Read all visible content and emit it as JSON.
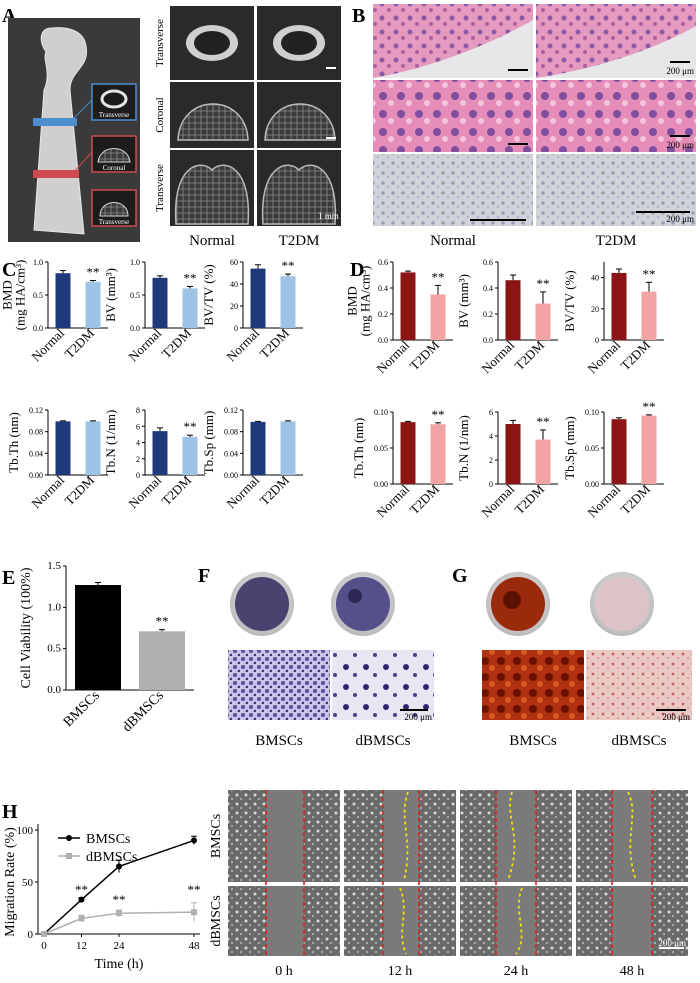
{
  "panels": {
    "A": {
      "label": "A",
      "femur_inset_labels": [
        "Transverse",
        "Coronal",
        "Transverse"
      ],
      "row_labels": [
        "Transverse",
        "Coronal",
        "Transverse"
      ],
      "group_labels": [
        "Normal",
        "T2DM"
      ],
      "scale_text": "1 mm"
    },
    "B": {
      "label": "B",
      "scale_texts": [
        "200 μm",
        "200 μm",
        "200 μm"
      ],
      "group_labels": [
        "Normal",
        "T2DM"
      ]
    },
    "F": {
      "label": "F",
      "scale_text": "200 μm",
      "group_labels": [
        "BMSCs",
        "dBMSCs"
      ]
    },
    "G": {
      "label": "G",
      "scale_text": "200 μm",
      "group_labels": [
        "BMSCs",
        "dBMSCs"
      ]
    },
    "H_micro": {
      "row_labels": [
        "BMSCs",
        "dBMSCs"
      ],
      "time_labels": [
        "0 h",
        "12 h",
        "24 h",
        "48 h"
      ],
      "scale_text": "200 μm"
    }
  },
  "colors": {
    "c_dark": "#1f3a7a",
    "c_light": "#9dc3e6",
    "d_dark": "#8b1515",
    "d_light": "#f2a3a3",
    "e_dark": "#000000",
    "e_light": "#b0b0b0",
    "he_pink": "#d8709a",
    "he_purple": "#7a4f9a"
  },
  "chart_data": [
    {
      "panel": "C",
      "label": "C",
      "type": "bar",
      "categories": [
        "Normal",
        "T2DM"
      ],
      "values": [
        0.83,
        0.7
      ],
      "errors": [
        0.04,
        0.02
      ],
      "ylabel": "BMD\n(mg HA/cm³)",
      "ylim": [
        0,
        1.0
      ],
      "yticks": [
        "0.0",
        "0.5",
        "1.0"
      ],
      "annotation": "**"
    },
    {
      "panel": "C",
      "type": "bar",
      "categories": [
        "Normal",
        "T2DM"
      ],
      "values": [
        0.76,
        0.6
      ],
      "errors": [
        0.03,
        0.03
      ],
      "ylabel": "BV (mm³)",
      "ylim": [
        0,
        1.0
      ],
      "yticks": [
        "0.0",
        "0.5",
        "1.0"
      ],
      "annotation": "**"
    },
    {
      "panel": "C",
      "type": "bar",
      "categories": [
        "Normal",
        "T2DM"
      ],
      "values": [
        54,
        47
      ],
      "errors": [
        3.5,
        2.0
      ],
      "ylabel": "BV/TV (%)",
      "ylim": [
        0,
        60
      ],
      "yticks": [
        "0",
        "20",
        "40",
        "60"
      ],
      "annotation": "**"
    },
    {
      "panel": "C",
      "type": "bar",
      "categories": [
        "Normal",
        "T2DM"
      ],
      "values": [
        0.099,
        0.099
      ],
      "errors": [
        0.001,
        0.001
      ],
      "ylabel": "Tb.Th (nm)",
      "ylim": [
        0,
        0.12
      ],
      "yticks": [
        "0.00",
        "0.04",
        "0.08",
        "0.12"
      ],
      "annotation": ""
    },
    {
      "panel": "C",
      "type": "bar",
      "categories": [
        "Normal",
        "T2DM"
      ],
      "values": [
        5.4,
        4.7
      ],
      "errors": [
        0.4,
        0.2
      ],
      "ylabel": "Tb.N (1/nm)",
      "ylim": [
        0,
        8
      ],
      "yticks": [
        "0",
        "2",
        "4",
        "6",
        "8"
      ],
      "annotation": "**"
    },
    {
      "panel": "C",
      "type": "bar",
      "categories": [
        "Normal",
        "T2DM"
      ],
      "values": [
        0.098,
        0.099
      ],
      "errors": [
        0.001,
        0.001
      ],
      "ylabel": "Tb.Sp (mm)",
      "ylim": [
        0,
        0.12
      ],
      "yticks": [
        "0.00",
        "0.04",
        "0.08",
        "0.12"
      ],
      "annotation": ""
    },
    {
      "panel": "D",
      "label": "D",
      "type": "bar",
      "categories": [
        "Normal",
        "T2DM"
      ],
      "values": [
        0.52,
        0.35
      ],
      "errors": [
        0.01,
        0.07
      ],
      "ylabel": "BMD\n(mg HA/cm³)",
      "ylim": [
        0,
        0.6
      ],
      "yticks": [
        "0.0",
        "0.2",
        "0.4",
        "0.6"
      ],
      "annotation": "**"
    },
    {
      "panel": "D",
      "type": "bar",
      "categories": [
        "Normal",
        "T2DM"
      ],
      "values": [
        0.46,
        0.28
      ],
      "errors": [
        0.04,
        0.09
      ],
      "ylabel": "BV (mm³)",
      "ylim": [
        0,
        0.6
      ],
      "yticks": [
        "0.0",
        "0.2",
        "0.4",
        "0.6"
      ],
      "annotation": "**"
    },
    {
      "panel": "D",
      "type": "bar",
      "categories": [
        "Normal",
        "T2DM"
      ],
      "values": [
        43,
        31
      ],
      "errors": [
        2.5,
        6.0
      ],
      "ylabel": "BV/TV (%)",
      "ylim": [
        0,
        50
      ],
      "yticks": [
        "0",
        "20",
        "40"
      ],
      "annotation": "**"
    },
    {
      "panel": "D",
      "type": "bar",
      "categories": [
        "Normal",
        "T2DM"
      ],
      "values": [
        0.086,
        0.083
      ],
      "errors": [
        0.001,
        0.002
      ],
      "ylabel": "Tb.Th (nm)",
      "ylim": [
        0,
        0.1
      ],
      "yticks": [
        "0.00",
        "0.05",
        "0.10"
      ],
      "annotation": "**"
    },
    {
      "panel": "D",
      "type": "bar",
      "categories": [
        "Normal",
        "T2DM"
      ],
      "values": [
        5.0,
        3.7
      ],
      "errors": [
        0.3,
        0.8
      ],
      "ylabel": "Tb.N (1/nm)",
      "ylim": [
        0,
        6
      ],
      "yticks": [
        "0",
        "2",
        "4",
        "6"
      ],
      "annotation": "**"
    },
    {
      "panel": "D",
      "type": "bar",
      "categories": [
        "Normal",
        "T2DM"
      ],
      "values": [
        0.09,
        0.095
      ],
      "errors": [
        0.002,
        0.001
      ],
      "ylabel": "Tb.Sp (mm)",
      "ylim": [
        0,
        0.1
      ],
      "yticks": [
        "0.00",
        "0.05",
        "0.10"
      ],
      "annotation": "**"
    },
    {
      "panel": "E",
      "label": "E",
      "type": "bar",
      "categories": [
        "BMSCs",
        "dBMSCs"
      ],
      "values": [
        1.27,
        0.71
      ],
      "errors": [
        0.03,
        0.02
      ],
      "ylabel": "Cell Viability (100%)",
      "ylim": [
        0,
        1.5
      ],
      "yticks": [
        "0.0",
        "0.5",
        "1.0",
        "1.5"
      ],
      "annotation": "**"
    },
    {
      "panel": "H",
      "label": "H",
      "type": "line",
      "x": [
        0,
        12,
        24,
        48
      ],
      "xticks": [
        "0",
        "12",
        "24",
        "48"
      ],
      "series": [
        {
          "name": "BMSCs",
          "values": [
            0,
            33,
            65,
            90
          ],
          "errors": [
            0,
            2,
            6,
            4
          ],
          "color": "#000000"
        },
        {
          "name": "dBMSCs",
          "values": [
            0,
            15,
            20,
            21
          ],
          "errors": [
            0,
            3,
            3,
            9
          ],
          "color": "#b0b0b0"
        }
      ],
      "xlabel": "Time (h)",
      "ylabel": "Migration Rate (%)",
      "ylim": [
        0,
        100
      ],
      "yticks": [
        "0",
        "50",
        "100"
      ],
      "annotations": [
        {
          "x": 12,
          "text": "**"
        },
        {
          "x": 24,
          "text": "**"
        },
        {
          "x": 48,
          "text": "**"
        }
      ]
    }
  ]
}
